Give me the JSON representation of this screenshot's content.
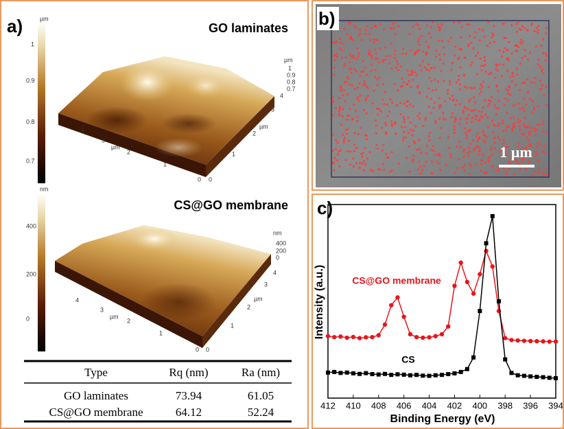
{
  "panel_a": {
    "label": "a)",
    "go_title": "GO laminates",
    "cs_title": "CS@GO membrane",
    "go_colorbar": [
      "µm",
      "1",
      "0.9",
      "0.8",
      "0.7"
    ],
    "go_z_axis": [
      "µm",
      "1",
      "0.9",
      "0.8",
      "0.7"
    ],
    "go_axes": [
      "4",
      "3",
      "µm",
      "2",
      "1",
      "0",
      "0",
      "1",
      "2",
      "µm",
      "3",
      "4"
    ],
    "cs_colorbar": [
      "nm",
      "400",
      "200",
      "0"
    ],
    "cs_z_axis": [
      "nm",
      "400",
      "200",
      "0"
    ],
    "cs_axes": [
      "4",
      "3",
      "µm",
      "2",
      "1",
      "0",
      "0",
      "1",
      "2",
      "µm",
      "3",
      "4"
    ],
    "table": {
      "header": [
        "Type",
        "Rq (nm)",
        "Ra (nm)"
      ],
      "rows": [
        [
          "GO laminates",
          "73.94",
          "61.05"
        ],
        [
          "CS@GO membrane",
          "64.12",
          "52.24"
        ]
      ]
    }
  },
  "panel_b": {
    "label": "b)",
    "scale_bar": "1 µm"
  },
  "panel_c": {
    "label": "c)"
  },
  "chart_data": {
    "type": "scatter",
    "xlabel": "Binding Energy (eV)",
    "ylabel": "Intensity (a.u.)",
    "xlim": [
      412,
      394
    ],
    "xticks": [
      412,
      410,
      408,
      406,
      404,
      402,
      400,
      398,
      396,
      394
    ],
    "ylim": [
      0,
      100
    ],
    "x": [
      412,
      411.5,
      411,
      410.5,
      410,
      409.5,
      409,
      408.5,
      408,
      407.5,
      407,
      406.5,
      406,
      405.5,
      405,
      404.5,
      404,
      403.5,
      403,
      402.5,
      402,
      401.5,
      401,
      400.5,
      400,
      399.5,
      399,
      398.5,
      398,
      397.5,
      397,
      396.5,
      396,
      395.5,
      395,
      394.5,
      394
    ],
    "series": [
      {
        "name": "CS@GO membrane",
        "color": "#e8151b",
        "marker": "circle",
        "values": [
          32,
          31.5,
          31.8,
          31.2,
          31.6,
          31.0,
          31.4,
          31.5,
          32.5,
          38,
          48,
          52,
          42,
          33,
          31.5,
          31.2,
          31.4,
          32,
          33,
          37,
          58,
          70,
          60,
          54,
          64,
          76,
          68,
          45,
          31,
          30,
          29.8,
          29.6,
          29.5,
          29.4,
          29.3,
          29.2,
          29.2
        ]
      },
      {
        "name": "CS",
        "color": "#000000",
        "marker": "square",
        "values": [
          13.2,
          13.5,
          13.0,
          13.2,
          12.8,
          12.5,
          12.9,
          12.4,
          12.2,
          12.5,
          12.0,
          12.3,
          12.1,
          11.8,
          12.0,
          11.6,
          11.5,
          11.8,
          12.0,
          12.4,
          12.8,
          13.5,
          15.0,
          21.0,
          45.0,
          80.0,
          94.0,
          50.0,
          20.0,
          13.0,
          11.8,
          11.5,
          11.2,
          11.0,
          10.8,
          10.5,
          10.3
        ]
      }
    ]
  }
}
